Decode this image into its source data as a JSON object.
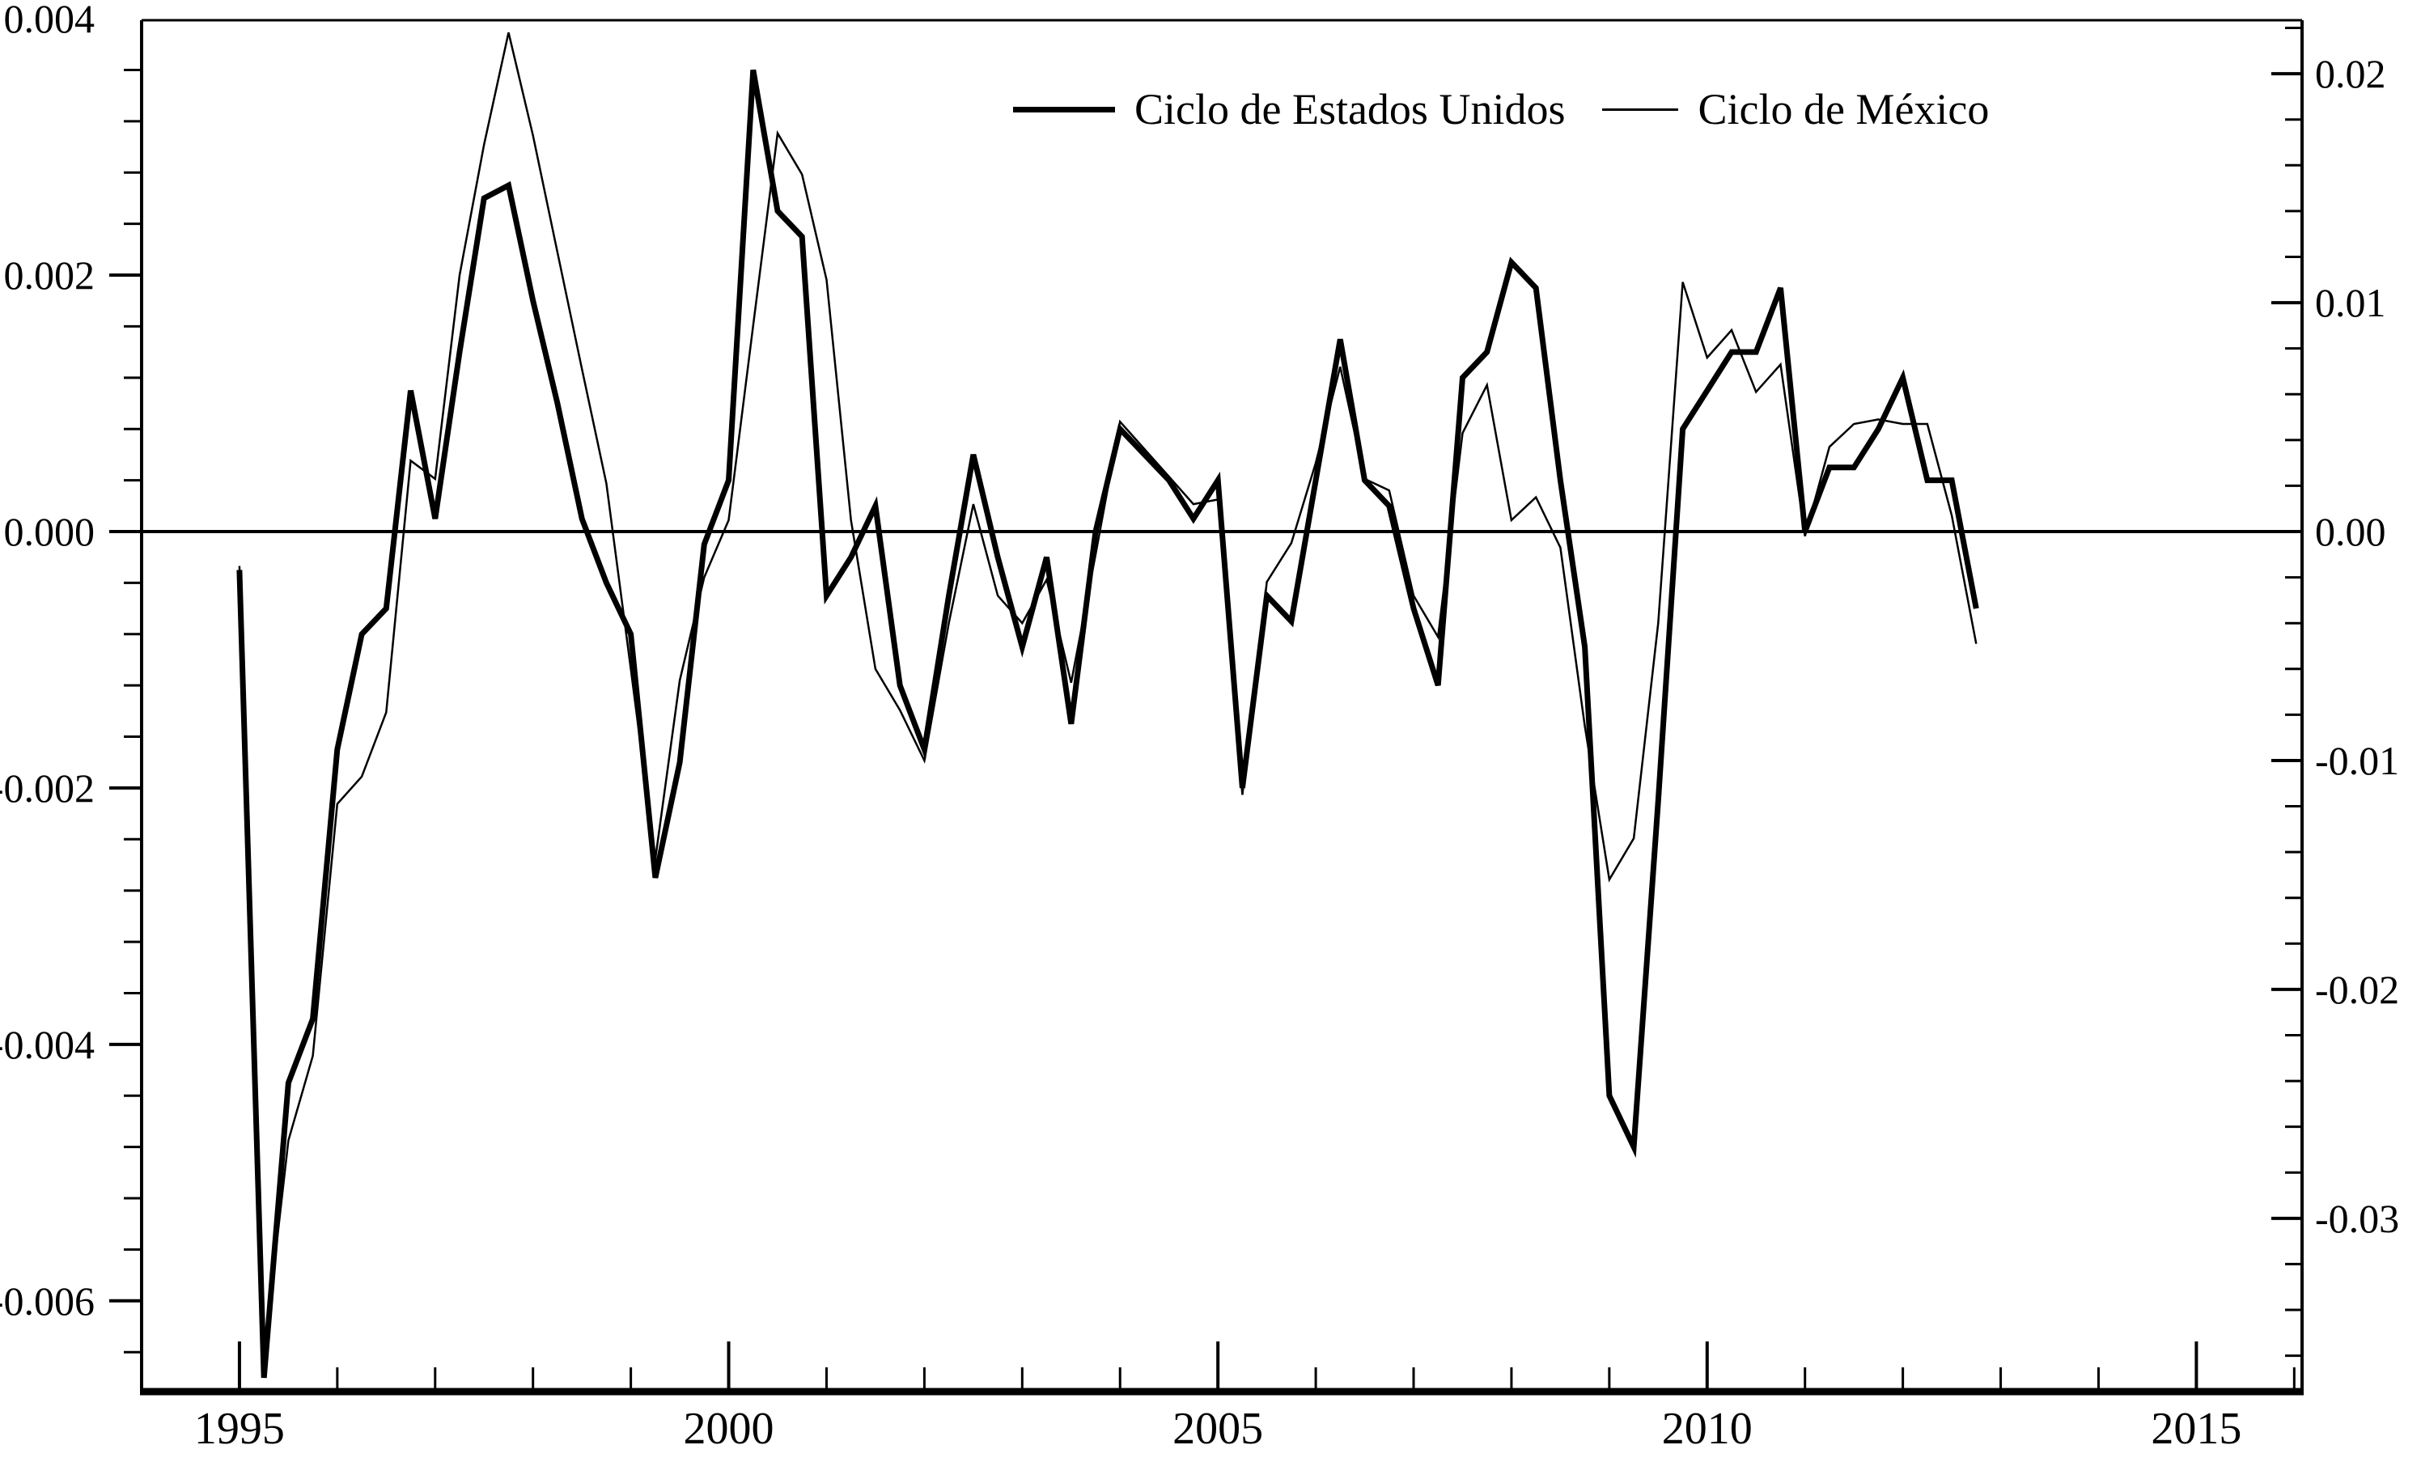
{
  "colors": {
    "line": "#000000",
    "background": "#ffffff"
  },
  "legend": {
    "items": [
      {
        "label": "Ciclo de Estados Unidos",
        "style": "thick"
      },
      {
        "label": "Ciclo de México",
        "style": "thin"
      }
    ]
  },
  "chart_data": {
    "type": "line",
    "title": "",
    "xlabel": "",
    "ylabel_left": "",
    "ylabel_right": "",
    "grid": false,
    "legend_position": "top-center-inside",
    "x_start": 1995.0,
    "x_step": 0.25,
    "x_axis": {
      "min": 1994.0,
      "max": 2016.08,
      "label_years": [
        1995,
        2000,
        2005,
        2010,
        2015
      ],
      "tick_labels": [
        "1995",
        "2000",
        "2005",
        "2010",
        "2015"
      ],
      "minor_tick_every": 1
    },
    "left_axis": {
      "min": -0.006708,
      "max": 0.003988,
      "label_values": [
        0.004,
        0.002,
        0.0,
        -0.002,
        -0.004,
        -0.006
      ],
      "tick_labels": [
        "0.004",
        "0.002",
        "0.000",
        "-0.002",
        "-0.004",
        "-0.006"
      ],
      "minor_tick_every": 0.0004
    },
    "right_axis": {
      "min": -0.037569,
      "max": 0.022337,
      "label_values": [
        0.02,
        0.01,
        0.0,
        -0.01,
        -0.02,
        -0.03
      ],
      "tick_labels": [
        "0.02",
        "0.01",
        "0.00",
        "-0.01",
        "-0.02",
        "-0.03"
      ],
      "minor_tick_every": 0.002
    },
    "series": [
      {
        "name": "Ciclo de Estados Unidos",
        "axis": "left",
        "style": "thick",
        "values": [
          -0.0003,
          -0.0066,
          -0.0043,
          -0.0038,
          -0.0017,
          -0.0008,
          -0.0006,
          0.0011,
          0.0001,
          0.0014,
          0.0026,
          0.0027,
          0.0018,
          0.001,
          0.0001,
          -0.0004,
          -0.0008,
          -0.0027,
          -0.0018,
          -0.0001,
          0.0004,
          0.0036,
          0.0025,
          0.0023,
          -0.0005,
          -0.0002,
          0.0002,
          -0.0012,
          -0.0017,
          -0.0005,
          0.0006,
          -0.0002,
          -0.0009,
          -0.0002,
          -0.0015,
          0.0,
          0.0008,
          0.0006,
          0.0004,
          0.0001,
          0.0004,
          -0.002,
          -0.0005,
          -0.0007,
          0.0004,
          0.0015,
          0.0004,
          0.0002,
          -0.0006,
          -0.0012,
          0.0012,
          0.0014,
          0.0021,
          0.0019,
          0.0004,
          -0.0009,
          -0.0044,
          -0.0048,
          -0.0021,
          0.0008,
          0.0011,
          0.0014,
          0.0014,
          0.0019,
          0.0,
          0.0005,
          0.0005,
          0.0008,
          0.0012,
          0.0004,
          0.0004,
          -0.0006
        ]
      },
      {
        "name": "Ciclo de México",
        "axis": "right",
        "style": "thin",
        "values": [
          -0.0015,
          -0.036,
          -0.0266,
          -0.0229,
          -0.0119,
          -0.0107,
          -0.0079,
          0.0031,
          0.0023,
          0.0112,
          0.0169,
          0.0218,
          0.0173,
          0.0122,
          0.0071,
          0.0021,
          -0.006,
          -0.0143,
          -0.0065,
          -0.002,
          0.0005,
          0.009,
          0.0174,
          0.0156,
          0.011,
          0.0005,
          -0.006,
          -0.0078,
          -0.01,
          -0.004,
          0.0012,
          -0.0028,
          -0.004,
          -0.0021,
          -0.0066,
          -0.001,
          0.0048,
          0.0036,
          0.0024,
          0.0012,
          0.0014,
          -0.0115,
          -0.0022,
          -0.0005,
          0.003,
          0.0072,
          0.0023,
          0.0018,
          -0.0028,
          -0.0046,
          0.0043,
          0.0064,
          0.0005,
          0.0015,
          -0.0007,
          -0.0085,
          -0.0152,
          -0.0134,
          -0.004,
          0.0109,
          0.0076,
          0.0088,
          0.0061,
          0.0073,
          -0.0002,
          0.0037,
          0.0047,
          0.0049,
          0.0047,
          0.0047,
          0.0007,
          -0.0049
        ]
      }
    ]
  }
}
